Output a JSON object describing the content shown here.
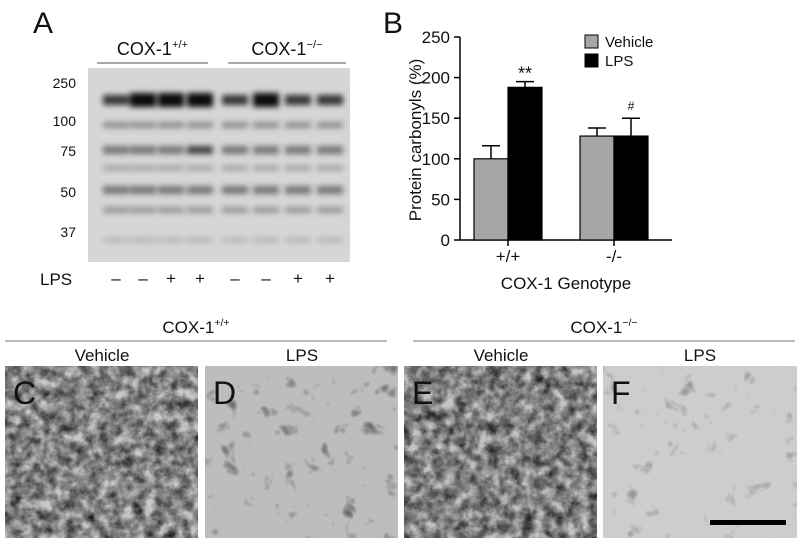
{
  "panel_a": {
    "letter": "A",
    "groups": [
      {
        "text": "COX-1",
        "sup": "+/+"
      },
      {
        "text": "COX-1",
        "sup": "−/−"
      }
    ],
    "markers": [
      250,
      100,
      75,
      50,
      37
    ],
    "row_label": "LPS",
    "lanes": [
      "–",
      "–",
      "+",
      "+",
      "–",
      "–",
      "+",
      "+"
    ]
  },
  "chart_data": {
    "type": "bar",
    "letter": "B",
    "y_label": "Protein carbonyls (%)",
    "x_label": "COX-1 Genotype",
    "categories": [
      "+/+",
      "-/-"
    ],
    "series": [
      {
        "name": "Vehicle",
        "color": "#a6a6a6",
        "values": [
          100,
          128
        ],
        "errors": [
          16,
          10
        ]
      },
      {
        "name": "LPS",
        "color": "#000000",
        "values": [
          188,
          128
        ],
        "errors": [
          7,
          22
        ],
        "labels": [
          "**",
          "#"
        ]
      }
    ],
    "ylim": [
      0,
      250
    ],
    "yticks": [
      0,
      50,
      100,
      150,
      200,
      250
    ],
    "legend": "upper right"
  },
  "micrographs": {
    "groups": [
      {
        "text": "COX-1",
        "sup": "+/+"
      },
      {
        "text": "COX-1",
        "sup": "−/−"
      }
    ],
    "panels": [
      {
        "letter": "C",
        "label": "Vehicle"
      },
      {
        "letter": "D",
        "label": "LPS"
      },
      {
        "letter": "E",
        "label": "Vehicle"
      },
      {
        "letter": "F",
        "label": "LPS"
      }
    ]
  }
}
